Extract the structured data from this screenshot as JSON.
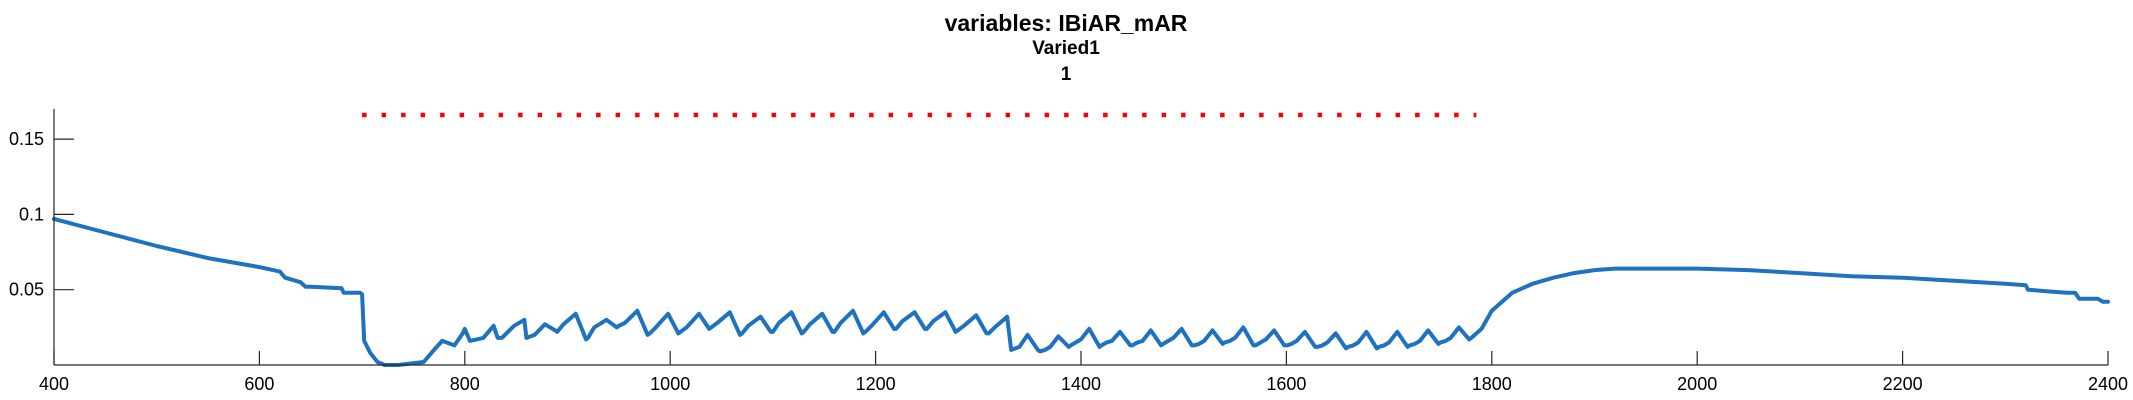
{
  "chart_data": {
    "type": "line",
    "title_lines": [
      "variables: IBiAR_mAR",
      "Varied1",
      "1"
    ],
    "xlabel": "",
    "ylabel": "",
    "xlim": [
      400,
      2400
    ],
    "ylim": [
      0,
      0.17
    ],
    "xticks": [
      400,
      600,
      800,
      1000,
      1200,
      1400,
      1600,
      1800,
      2000,
      2200,
      2400
    ],
    "xtick_labels": [
      "400",
      "600",
      "800",
      "1000",
      "1200",
      "1400",
      "1600",
      "1800",
      "2000",
      "2200",
      "2400"
    ],
    "yticks": [
      0.05,
      0.1,
      0.15
    ],
    "ytick_labels": [
      "0.05",
      "0.1",
      "0.15"
    ],
    "grid": false,
    "colors": {
      "line": "#1f72bf",
      "marker_line": "#ff0000",
      "axes": "#262626"
    },
    "series": [
      {
        "style": "dotted",
        "color": "#ff0000",
        "x": [
          700,
          1785
        ],
        "y": [
          0.166,
          0.166
        ]
      },
      {
        "style": "solid",
        "color": "#1f72bf",
        "x": [
          400,
          450,
          500,
          550,
          600,
          620,
          625,
          640,
          645,
          650,
          680,
          682,
          698,
          700,
          702,
          708,
          715,
          722,
          730,
          735,
          760,
          770,
          778,
          790,
          798,
          800,
          805,
          818,
          828,
          832,
          836,
          848,
          858,
          860,
          868,
          878,
          888,
          890,
          896,
          908,
          918,
          920,
          926,
          938,
          948,
          950,
          956,
          968,
          978,
          980,
          986,
          998,
          1008,
          1010,
          1016,
          1028,
          1038,
          1040,
          1046,
          1058,
          1068,
          1070,
          1076,
          1088,
          1098,
          1100,
          1106,
          1118,
          1128,
          1130,
          1136,
          1148,
          1158,
          1160,
          1166,
          1178,
          1188,
          1190,
          1196,
          1208,
          1218,
          1220,
          1226,
          1238,
          1248,
          1250,
          1256,
          1268,
          1278,
          1280,
          1286,
          1298,
          1308,
          1310,
          1316,
          1328,
          1332,
          1336,
          1340,
          1348,
          1358,
          1360,
          1365,
          1370,
          1378,
          1388,
          1390,
          1395,
          1400,
          1408,
          1418,
          1420,
          1425,
          1430,
          1438,
          1448,
          1450,
          1455,
          1460,
          1468,
          1478,
          1480,
          1485,
          1490,
          1498,
          1508,
          1510,
          1515,
          1520,
          1528,
          1538,
          1540,
          1545,
          1550,
          1558,
          1568,
          1570,
          1575,
          1580,
          1588,
          1598,
          1600,
          1605,
          1610,
          1618,
          1628,
          1630,
          1635,
          1640,
          1648,
          1658,
          1660,
          1665,
          1670,
          1678,
          1688,
          1690,
          1695,
          1700,
          1708,
          1718,
          1720,
          1725,
          1730,
          1738,
          1748,
          1750,
          1755,
          1760,
          1768,
          1778,
          1780,
          1785,
          1790,
          1800,
          1820,
          1840,
          1860,
          1880,
          1900,
          1920,
          1940,
          1960,
          1980,
          2000,
          2050,
          2100,
          2150,
          2200,
          2250,
          2300,
          2320,
          2322,
          2340,
          2360,
          2368,
          2372,
          2390,
          2395,
          2400
        ],
        "y": [
          0.097,
          0.088,
          0.079,
          0.071,
          0.065,
          0.062,
          0.058,
          0.055,
          0.052,
          0.052,
          0.051,
          0.048,
          0.048,
          0.047,
          0.016,
          0.008,
          0.002,
          0.0,
          0.0,
          0.0,
          0.002,
          0.01,
          0.016,
          0.013,
          0.021,
          0.024,
          0.016,
          0.018,
          0.026,
          0.018,
          0.018,
          0.026,
          0.03,
          0.018,
          0.02,
          0.027,
          0.023,
          0.022,
          0.027,
          0.034,
          0.017,
          0.018,
          0.025,
          0.03,
          0.025,
          0.026,
          0.028,
          0.036,
          0.02,
          0.021,
          0.025,
          0.034,
          0.021,
          0.022,
          0.025,
          0.034,
          0.024,
          0.025,
          0.028,
          0.035,
          0.02,
          0.021,
          0.026,
          0.032,
          0.022,
          0.022,
          0.028,
          0.035,
          0.021,
          0.022,
          0.027,
          0.034,
          0.022,
          0.022,
          0.028,
          0.036,
          0.021,
          0.022,
          0.026,
          0.035,
          0.024,
          0.024,
          0.029,
          0.035,
          0.024,
          0.024,
          0.029,
          0.035,
          0.022,
          0.023,
          0.026,
          0.033,
          0.021,
          0.021,
          0.025,
          0.032,
          0.01,
          0.011,
          0.012,
          0.02,
          0.01,
          0.009,
          0.01,
          0.012,
          0.019,
          0.012,
          0.013,
          0.015,
          0.017,
          0.024,
          0.012,
          0.013,
          0.015,
          0.016,
          0.022,
          0.013,
          0.013,
          0.015,
          0.016,
          0.023,
          0.013,
          0.014,
          0.016,
          0.018,
          0.024,
          0.013,
          0.013,
          0.014,
          0.016,
          0.023,
          0.014,
          0.015,
          0.016,
          0.018,
          0.025,
          0.013,
          0.013,
          0.015,
          0.017,
          0.023,
          0.013,
          0.013,
          0.014,
          0.016,
          0.022,
          0.012,
          0.012,
          0.013,
          0.015,
          0.021,
          0.011,
          0.012,
          0.013,
          0.015,
          0.022,
          0.011,
          0.012,
          0.013,
          0.015,
          0.022,
          0.012,
          0.013,
          0.014,
          0.016,
          0.023,
          0.014,
          0.015,
          0.016,
          0.018,
          0.025,
          0.017,
          0.018,
          0.021,
          0.024,
          0.036,
          0.048,
          0.054,
          0.058,
          0.061,
          0.063,
          0.064,
          0.064,
          0.064,
          0.064,
          0.064,
          0.063,
          0.061,
          0.059,
          0.058,
          0.056,
          0.054,
          0.053,
          0.05,
          0.049,
          0.048,
          0.048,
          0.044,
          0.044,
          0.042,
          0.042
        ]
      }
    ]
  }
}
